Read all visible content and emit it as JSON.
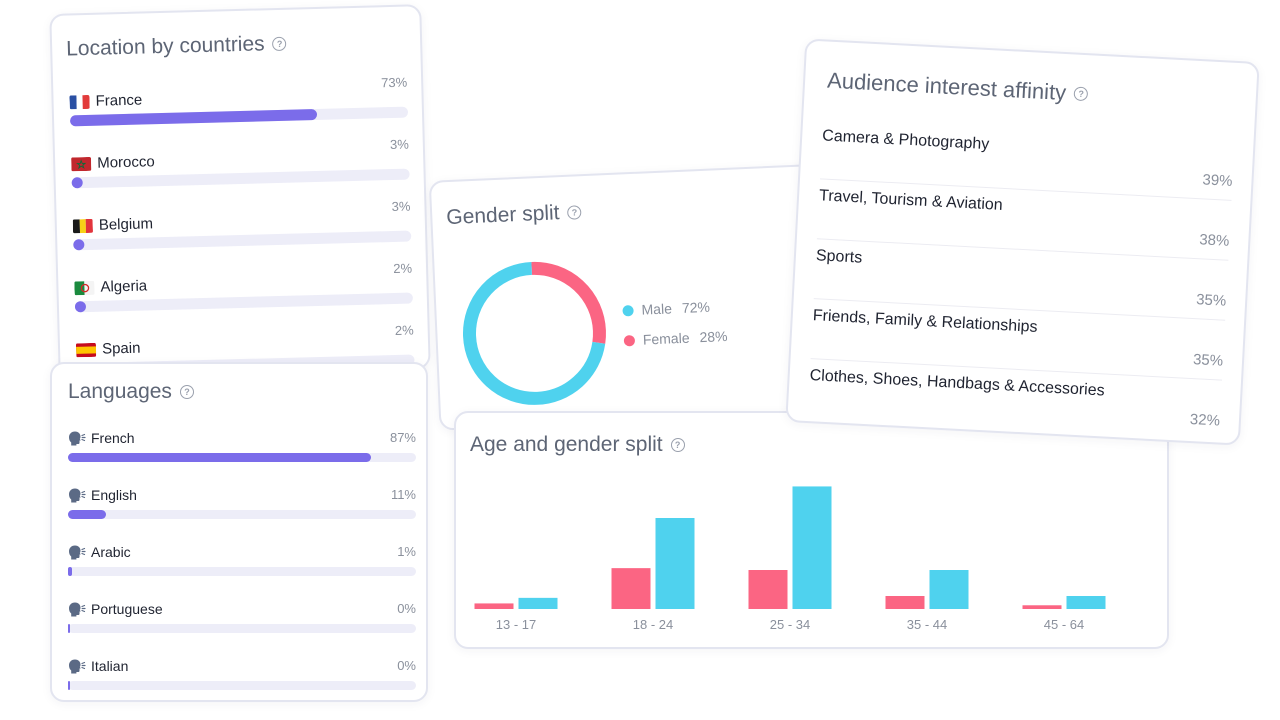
{
  "location_card": {
    "title": "Location by countries",
    "rows": [
      {
        "country": "France",
        "percent": "73%",
        "value": 0.73,
        "flag": "fr"
      },
      {
        "country": "Morocco",
        "percent": "3%",
        "value": 0.03,
        "flag": "ma"
      },
      {
        "country": "Belgium",
        "percent": "3%",
        "value": 0.03,
        "flag": "be"
      },
      {
        "country": "Algeria",
        "percent": "2%",
        "value": 0.02,
        "flag": "dz"
      },
      {
        "country": "Spain",
        "percent": "2%",
        "value": 0.02,
        "flag": "es"
      }
    ]
  },
  "languages_card": {
    "title": "Languages",
    "icon": "speaking-head-icon",
    "rows": [
      {
        "language": "French",
        "percent": "87%",
        "value": 0.87
      },
      {
        "language": "English",
        "percent": "11%",
        "value": 0.11
      },
      {
        "language": "Arabic",
        "percent": "1%",
        "value": 0.01
      },
      {
        "language": "Portuguese",
        "percent": "0%",
        "value": 0.0
      },
      {
        "language": "Italian",
        "percent": "0%",
        "value": 0.0
      }
    ]
  },
  "gender_card": {
    "title": "Gender split",
    "legend": [
      {
        "label": "Male",
        "percent": "72%",
        "value": 72,
        "color": "#4fd2ee"
      },
      {
        "label": "Female",
        "percent": "28%",
        "value": 28,
        "color": "#fb6583"
      }
    ]
  },
  "interest_card": {
    "title": "Audience interest affinity",
    "rows": [
      {
        "label": "Camera & Photography",
        "percent": "39%"
      },
      {
        "label": "Travel, Tourism & Aviation",
        "percent": "38%"
      },
      {
        "label": "Sports",
        "percent": "35%"
      },
      {
        "label": "Friends, Family & Relationships",
        "percent": "35%"
      },
      {
        "label": "Clothes, Shoes, Handbags & Accessories",
        "percent": "32%"
      }
    ]
  },
  "age_card": {
    "title": "Age and gender split"
  },
  "colors": {
    "accent": "#7b6cea",
    "track": "#ededf8",
    "male": "#4fd2ee",
    "female": "#fb6583"
  },
  "chart_data": {
    "type": "bar",
    "categories": [
      "13 - 17",
      "18 - 24",
      "25 - 34",
      "35 - 44",
      "45 - 64"
    ],
    "series": [
      {
        "values": [
          1.5,
          11,
          10.5,
          3.5,
          1
        ]
      },
      {
        "values": [
          3,
          24.5,
          33,
          10.5,
          3.5
        ]
      }
    ],
    "ylim": [
      0,
      35
    ],
    "grid": false,
    "legend": "none"
  }
}
